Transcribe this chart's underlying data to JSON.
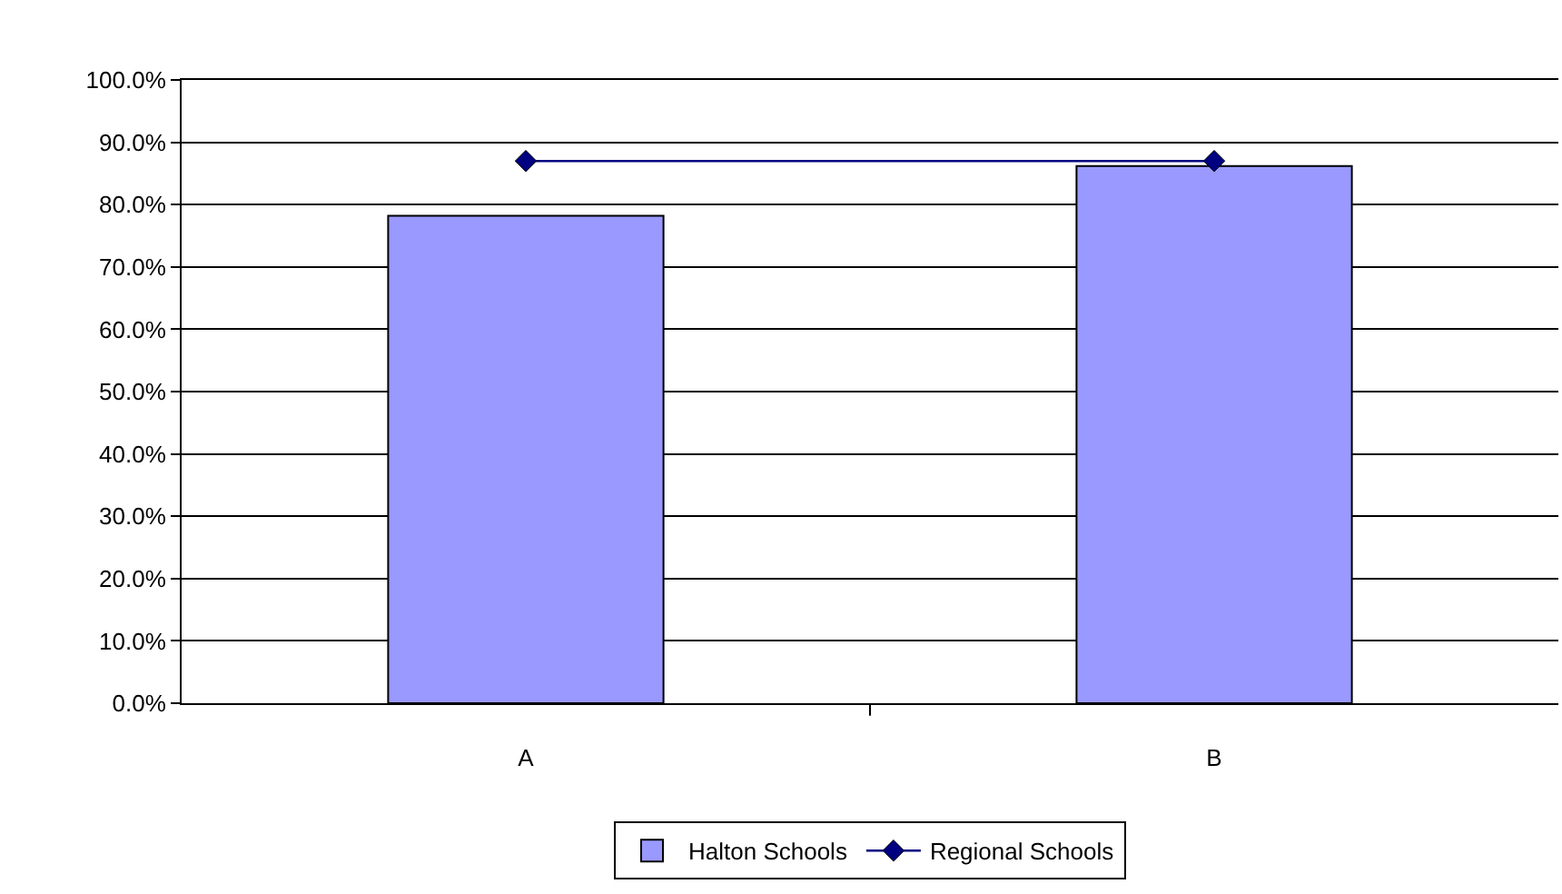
{
  "chart_data": {
    "type": "bar",
    "categories": [
      "A",
      "B"
    ],
    "series": [
      {
        "name": "Halton Schools",
        "color": "#9999ff",
        "values": [
          78.2,
          86.2
        ]
      },
      {
        "name": "Regional Schools",
        "type": "line",
        "color": "#000080",
        "values": [
          87.0,
          87.0
        ]
      }
    ],
    "ylim": [
      0,
      100
    ],
    "yticks": [
      {
        "value": 0,
        "label": "0.0%"
      },
      {
        "value": 10,
        "label": "10.0%"
      },
      {
        "value": 20,
        "label": "20.0%"
      },
      {
        "value": 30,
        "label": "30.0%"
      },
      {
        "value": 40,
        "label": "40.0%"
      },
      {
        "value": 50,
        "label": "50.0%"
      },
      {
        "value": 60,
        "label": "60.0%"
      },
      {
        "value": 70,
        "label": "70.0%"
      },
      {
        "value": 80,
        "label": "80.0%"
      },
      {
        "value": 90,
        "label": "90.0%"
      },
      {
        "value": 100,
        "label": "100.0%"
      }
    ],
    "grid": "y",
    "legend": "bottom",
    "marker": "diamond",
    "line_style": "solid"
  }
}
